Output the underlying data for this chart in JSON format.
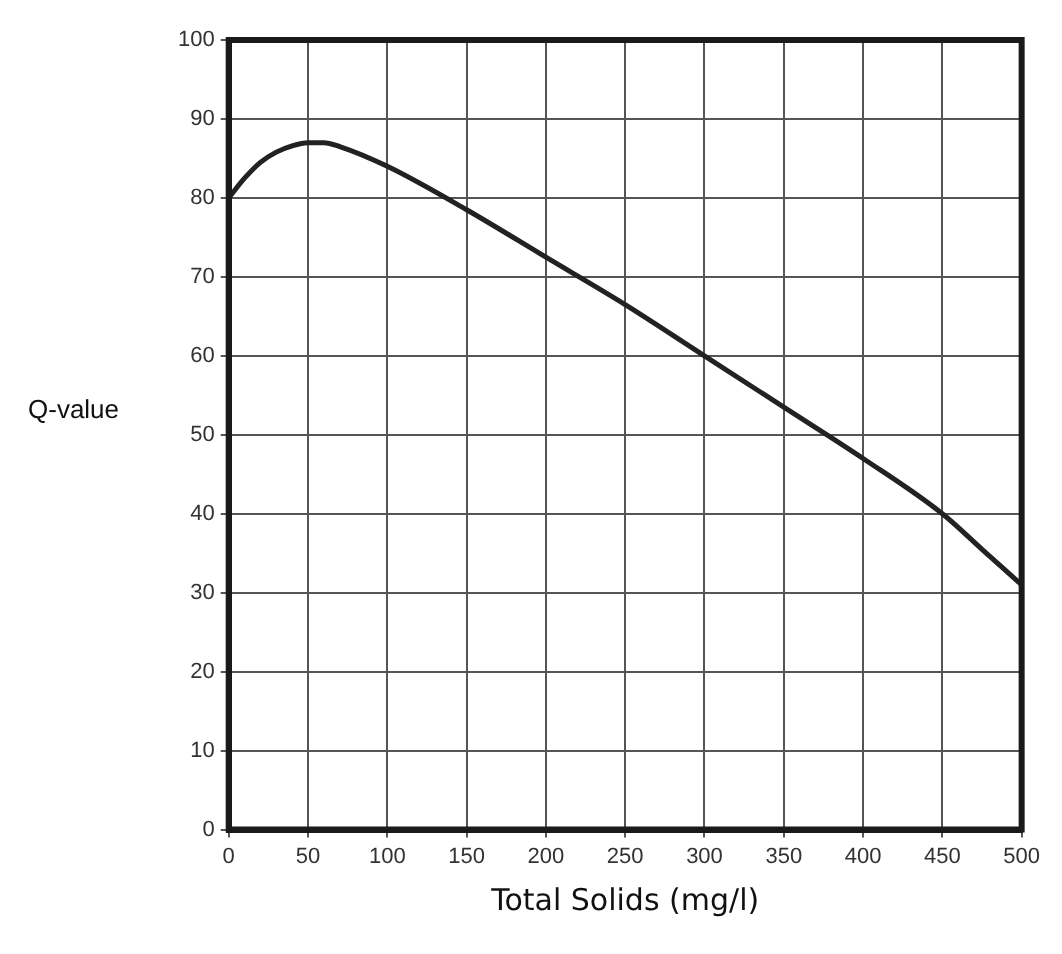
{
  "chart_data": {
    "type": "line",
    "xlabel": "Total Solids (mg/l)",
    "ylabel": "Q-value",
    "series": [
      {
        "color": "#222222",
        "x": [
          0,
          10,
          20,
          30,
          40,
          50,
          60,
          70,
          100,
          150,
          200,
          250,
          300,
          350,
          400,
          450,
          475,
          500
        ],
        "values": [
          80,
          82.5,
          84.5,
          85.8,
          86.6,
          87,
          87,
          86.5,
          84,
          78.5,
          72.5,
          66.5,
          60,
          53.5,
          47,
          40,
          35.5,
          31
        ]
      }
    ],
    "xlim": [
      0,
      500
    ],
    "xticks": [
      0,
      50,
      100,
      150,
      200,
      250,
      300,
      350,
      400,
      450,
      500
    ],
    "ylim": [
      0,
      100
    ],
    "yticks": [
      0,
      10,
      20,
      30,
      40,
      50,
      60,
      70,
      80,
      90,
      100
    ],
    "grid": true,
    "legend": false,
    "marker": "none",
    "line_style": "solid"
  }
}
